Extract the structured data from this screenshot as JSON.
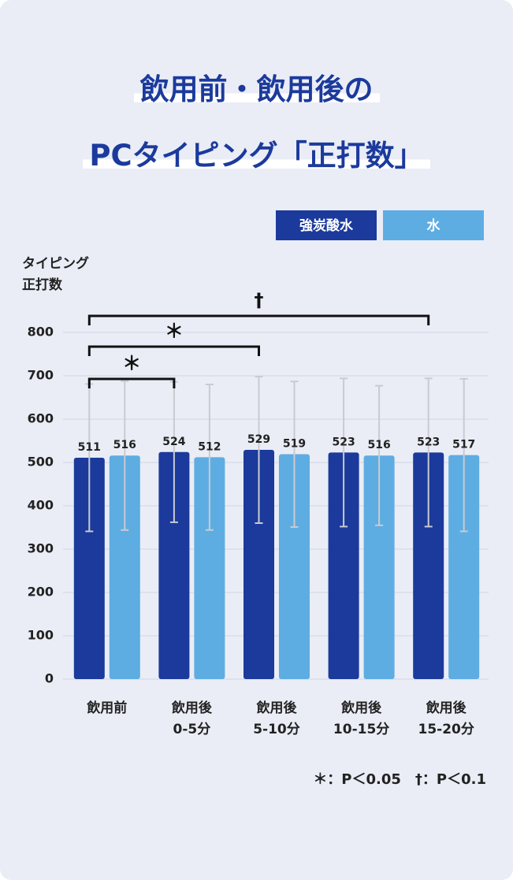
{
  "chart_data": {
    "type": "bar",
    "title": "飲用前・飲用後の\nPCタイピング「正打数」",
    "y_label": "タイピング\n正打数",
    "categories": [
      "飲用前",
      "飲用後\n0-5分",
      "飲用後\n5-10分",
      "飲用後\n10-15分",
      "飲用後\n15-20分"
    ],
    "series": [
      {
        "name": "強炭酸水",
        "color": "#1b3a9c",
        "values": [
          511,
          524,
          529,
          523,
          523
        ],
        "errors": [
          170,
          162,
          169,
          171,
          171
        ]
      },
      {
        "name": "水",
        "color": "#5dade2",
        "values": [
          516,
          512,
          519,
          516,
          517
        ],
        "errors": [
          172,
          168,
          168,
          161,
          176
        ]
      }
    ],
    "ylim": [
      0,
      800
    ],
    "yticks": [
      0,
      100,
      200,
      300,
      400,
      500,
      600,
      700,
      800
    ],
    "grid": true,
    "annotations": [
      "＊",
      "＊",
      "†"
    ],
    "footnote": "＊：P＜0.05　†：P＜0.1"
  }
}
